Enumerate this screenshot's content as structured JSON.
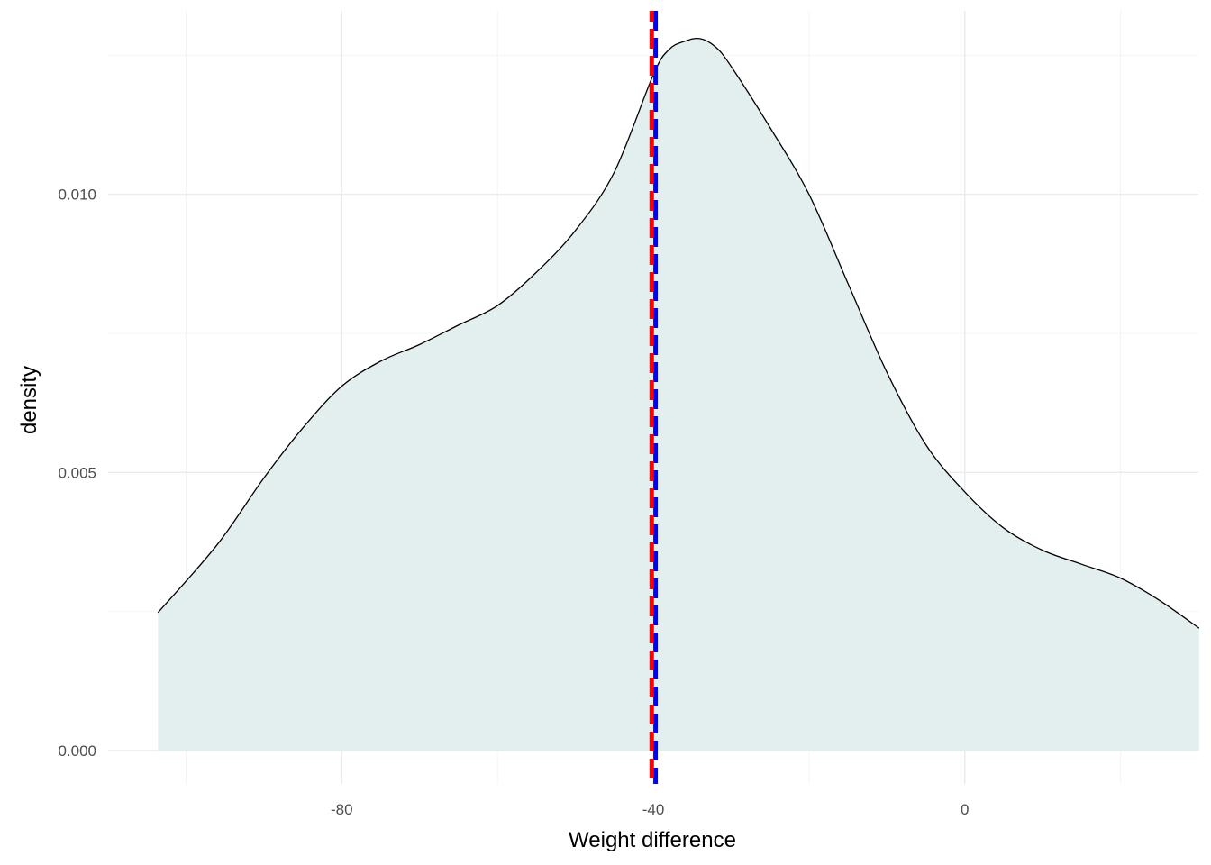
{
  "chart_data": {
    "type": "area",
    "title": "",
    "xlabel": "Weight difference",
    "ylabel": "density",
    "xlim": [
      -110,
      30
    ],
    "ylim": [
      -0.0006,
      0.0133
    ],
    "x_ticks": [
      -80,
      -40,
      0
    ],
    "x_tick_labels": [
      "-80",
      "-40",
      "0"
    ],
    "y_ticks": [
      0.0,
      0.005,
      0.01
    ],
    "y_tick_labels": [
      "0.000",
      "0.005",
      "0.010"
    ],
    "grid": true,
    "legend": "none",
    "series": [
      {
        "x": [
          -103.6,
          -96,
          -90,
          -85,
          -80,
          -75,
          -70,
          -65,
          -60,
          -55,
          -50,
          -45,
          -40,
          -38,
          -36,
          -34,
          -32,
          -30,
          -25,
          -20,
          -15,
          -10,
          -5,
          0,
          5,
          10,
          15,
          20,
          25,
          30.1
        ],
        "y": [
          0.00248,
          0.0037,
          0.0049,
          0.0058,
          0.00655,
          0.007,
          0.0073,
          0.00765,
          0.008,
          0.0086,
          0.00935,
          0.0104,
          0.01215,
          0.0126,
          0.01275,
          0.0128,
          0.01265,
          0.0123,
          0.0112,
          0.01,
          0.0084,
          0.0068,
          0.0055,
          0.00465,
          0.004,
          0.0036,
          0.00335,
          0.0031,
          0.0027,
          0.0022
        ]
      }
    ],
    "vlines": [
      {
        "x": -39.7
      },
      {
        "x": -40.2
      }
    ],
    "colors": {
      "fill": "#e3efef",
      "line": "#000000",
      "vline_1": "#0000ff",
      "vline_2": "#ff0000",
      "grid_major": "#ebebeb",
      "grid_minor": "#f4f4f4"
    }
  }
}
